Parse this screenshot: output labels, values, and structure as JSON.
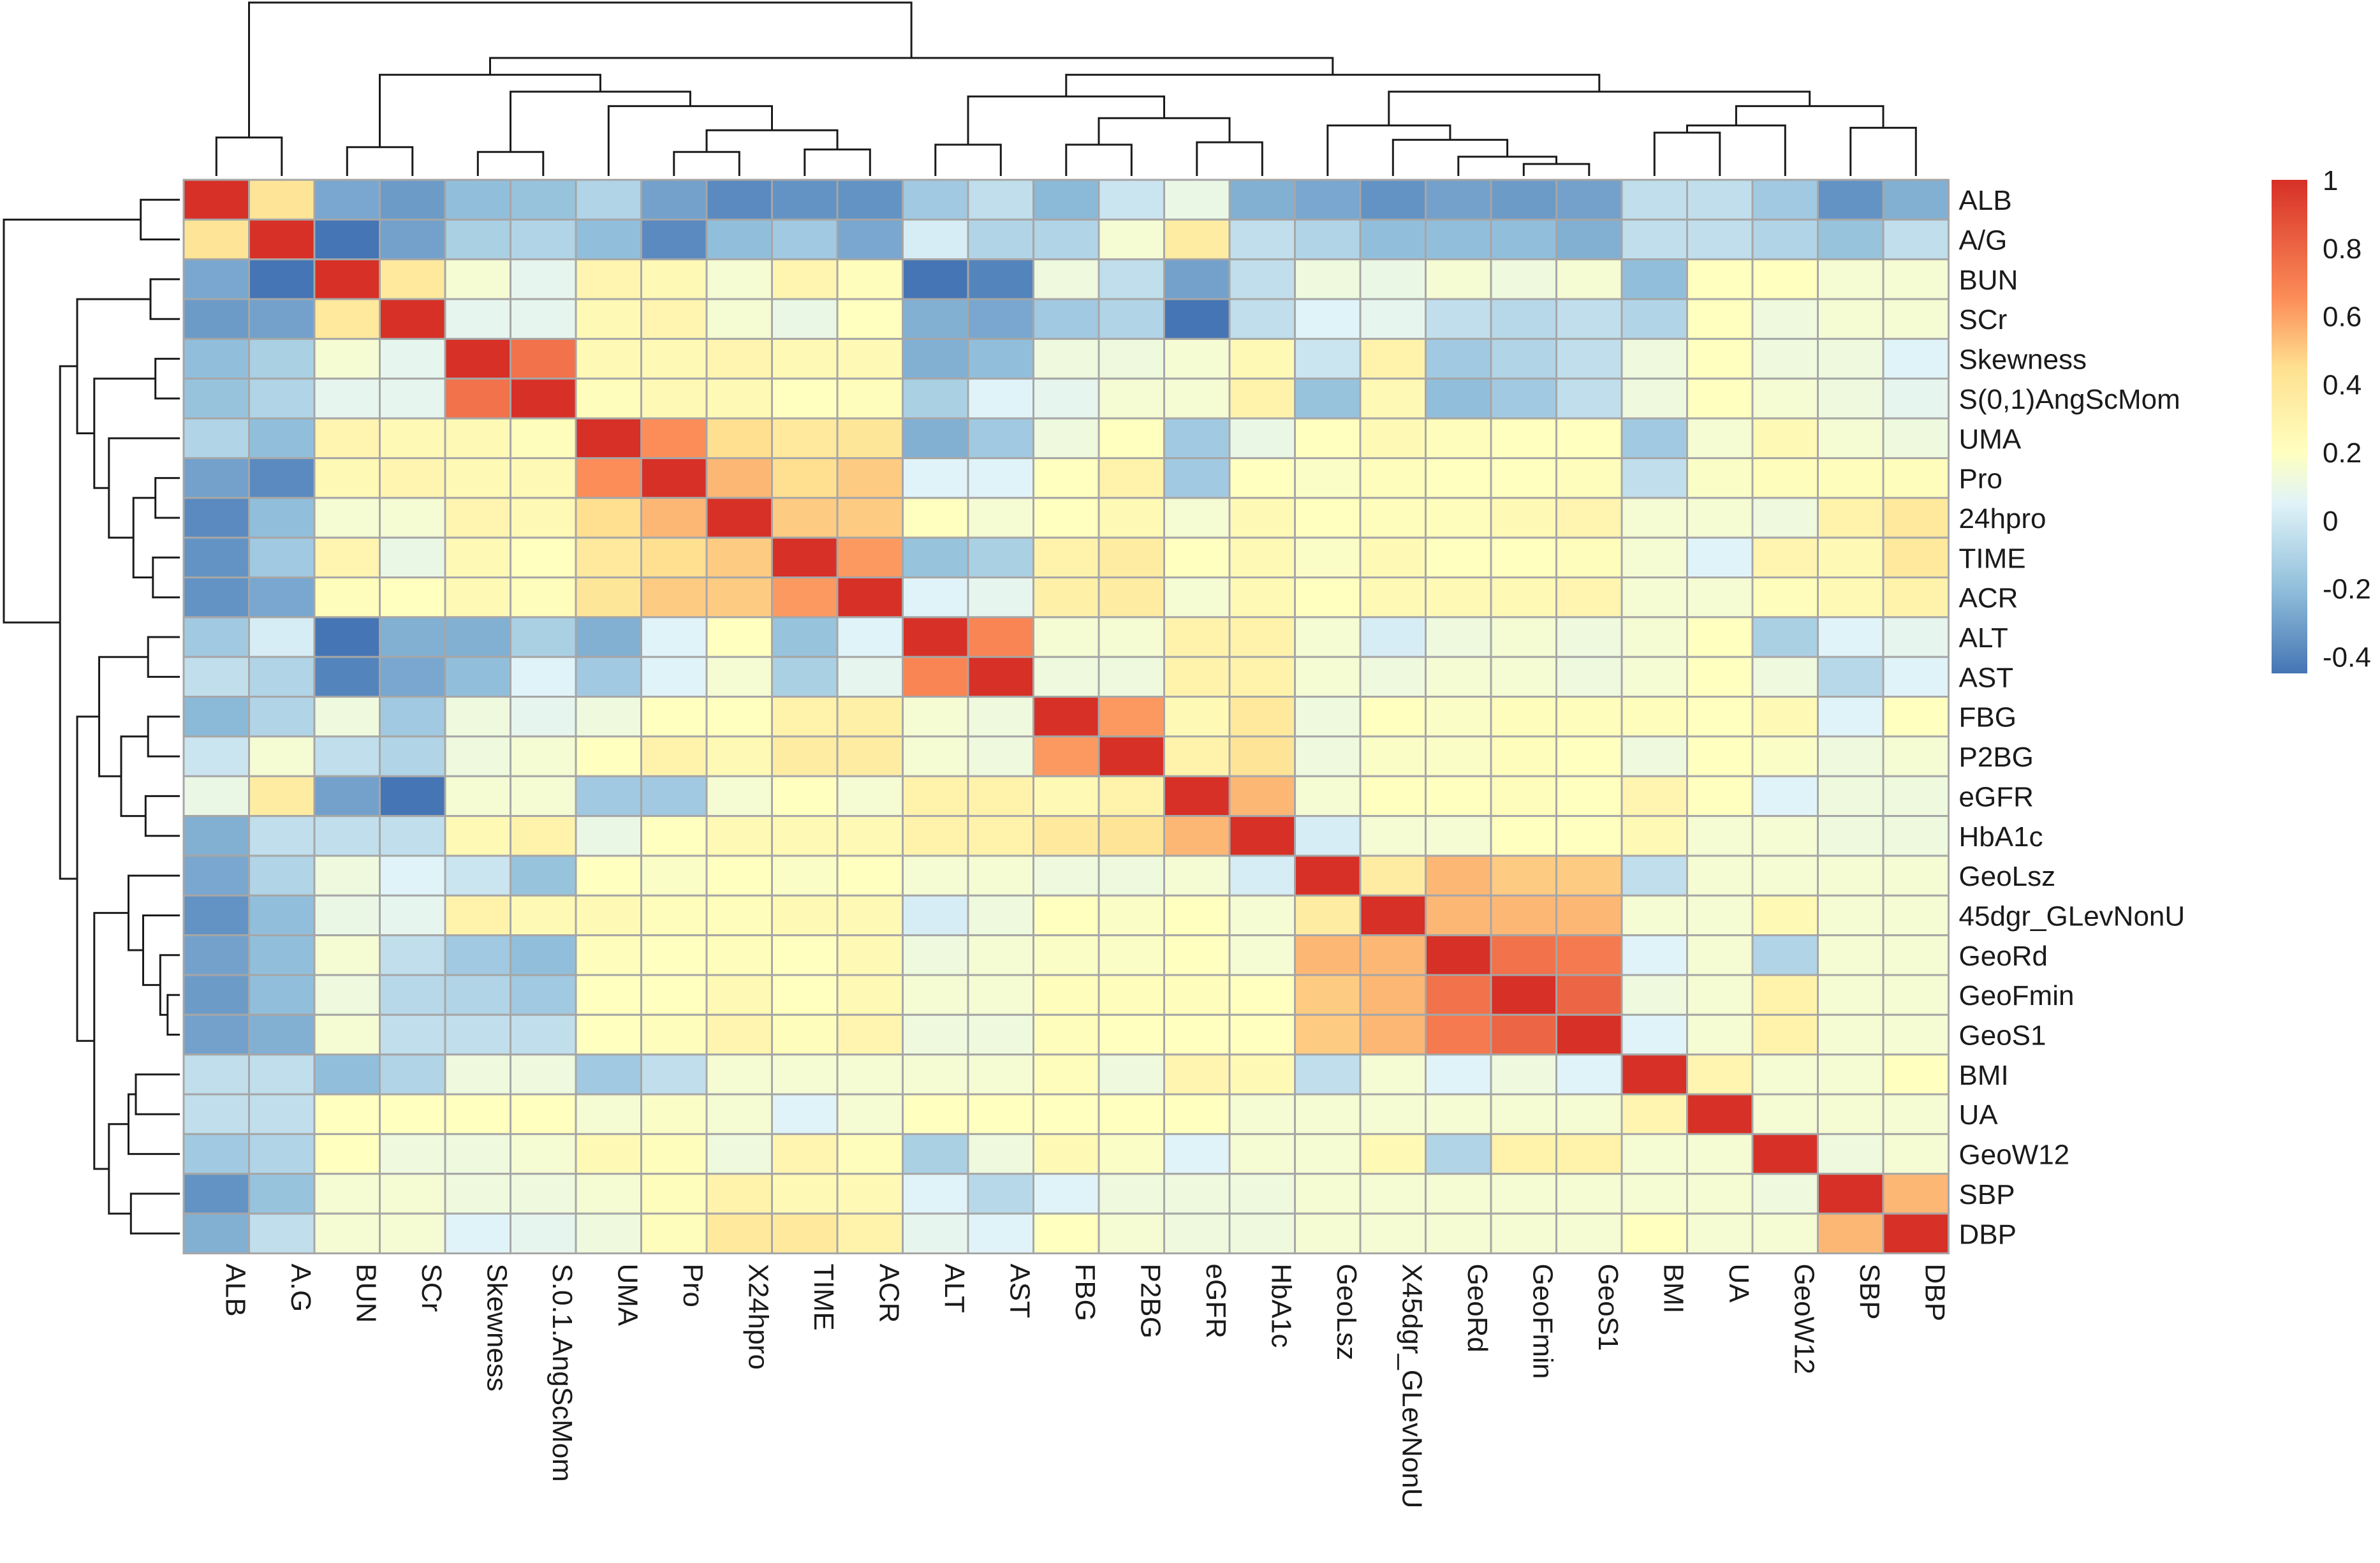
{
  "chart_data": {
    "type": "heatmap",
    "title": "",
    "row_labels": [
      "ALB",
      "A/G",
      "BUN",
      "SCr",
      "Skewness",
      "S(0,1)AngScMom",
      "UMA",
      "Pro",
      "24hpro",
      "TIME",
      "ACR",
      "ALT",
      "AST",
      "FBG",
      "P2BG",
      "eGFR",
      "HbA1c",
      "GeoLsz",
      "45dgr_GLevNonU",
      "GeoRd",
      "GeoFmin",
      "GeoS1",
      "BMI",
      "UA",
      "GeoW12",
      "SBP",
      "DBP"
    ],
    "col_labels": [
      "ALB",
      "A.G",
      "BUN",
      "SCr",
      "Skewness",
      "S.0.1.AngScMom",
      "UMA",
      "Pro",
      "X24hpro",
      "TIME",
      "ACR",
      "ALT",
      "AST",
      "FBG",
      "P2BG",
      "eGFR",
      "HbA1c",
      "GeoLsz",
      "X45dgr_GLevNonU",
      "GeoRd",
      "GeoFmin",
      "GeoS1",
      "BMI",
      "UA",
      "GeoW12",
      "SBP",
      "DBP"
    ],
    "values": [
      [
        1,
        0.42,
        -0.28,
        -0.32,
        -0.2,
        -0.18,
        -0.1,
        -0.3,
        -0.38,
        -0.35,
        -0.35,
        -0.15,
        -0.05,
        -0.22,
        -0.02,
        0.1,
        -0.25,
        -0.28,
        -0.35,
        -0.3,
        -0.32,
        -0.3,
        -0.05,
        -0.05,
        -0.15,
        -0.35,
        -0.25
      ],
      [
        0.42,
        1,
        -0.45,
        -0.3,
        -0.12,
        -0.1,
        -0.2,
        -0.38,
        -0.2,
        -0.15,
        -0.28,
        0.02,
        -0.1,
        -0.1,
        0.15,
        0.35,
        -0.05,
        -0.1,
        -0.2,
        -0.2,
        -0.2,
        -0.25,
        -0.05,
        -0.05,
        -0.1,
        -0.18,
        -0.05
      ],
      [
        -0.28,
        -0.45,
        1,
        0.38,
        0.15,
        0.08,
        0.28,
        0.25,
        0.15,
        0.28,
        0.22,
        -0.45,
        -0.4,
        0.12,
        -0.05,
        -0.3,
        -0.05,
        0.12,
        0.1,
        0.15,
        0.12,
        0.15,
        -0.2,
        0.2,
        0.2,
        0.15,
        0.15
      ],
      [
        -0.32,
        -0.3,
        0.38,
        1,
        0.08,
        0.08,
        0.25,
        0.28,
        0.15,
        0.1,
        0.2,
        -0.25,
        -0.28,
        -0.15,
        -0.1,
        -0.45,
        -0.05,
        0.05,
        0.08,
        -0.05,
        -0.08,
        -0.05,
        -0.1,
        0.2,
        0.12,
        0.15,
        0.15
      ],
      [
        -0.2,
        -0.12,
        0.15,
        0.08,
        1,
        0.75,
        0.25,
        0.25,
        0.28,
        0.25,
        0.25,
        -0.25,
        -0.2,
        0.12,
        0.12,
        0.15,
        0.25,
        -0.02,
        0.3,
        -0.15,
        -0.1,
        -0.05,
        0.12,
        0.2,
        0.12,
        0.12,
        0.05
      ],
      [
        -0.18,
        -0.1,
        0.08,
        0.08,
        0.75,
        1,
        0.22,
        0.25,
        0.25,
        0.2,
        0.22,
        -0.12,
        0.05,
        0.08,
        0.15,
        0.15,
        0.3,
        -0.18,
        0.25,
        -0.2,
        -0.15,
        -0.05,
        0.12,
        0.2,
        0.15,
        0.12,
        0.08
      ],
      [
        -0.1,
        -0.2,
        0.28,
        0.25,
        0.25,
        0.22,
        1,
        0.65,
        0.45,
        0.38,
        0.4,
        -0.25,
        -0.15,
        0.12,
        0.2,
        -0.15,
        0.1,
        0.2,
        0.25,
        0.22,
        0.2,
        0.2,
        -0.15,
        0.15,
        0.25,
        0.15,
        0.12
      ],
      [
        -0.3,
        -0.38,
        0.25,
        0.28,
        0.25,
        0.25,
        0.65,
        1,
        0.55,
        0.45,
        0.5,
        0.05,
        0.05,
        0.2,
        0.3,
        -0.15,
        0.2,
        0.18,
        0.22,
        0.2,
        0.2,
        0.22,
        -0.05,
        0.18,
        0.22,
        0.22,
        0.22
      ],
      [
        -0.38,
        -0.2,
        0.15,
        0.15,
        0.28,
        0.25,
        0.45,
        0.55,
        1,
        0.5,
        0.5,
        0.2,
        0.15,
        0.2,
        0.25,
        0.15,
        0.25,
        0.2,
        0.22,
        0.22,
        0.25,
        0.28,
        0.15,
        0.15,
        0.12,
        0.3,
        0.38
      ],
      [
        -0.35,
        -0.15,
        0.28,
        0.1,
        0.25,
        0.2,
        0.38,
        0.45,
        0.5,
        1,
        0.62,
        -0.18,
        -0.12,
        0.3,
        0.35,
        0.2,
        0.25,
        0.18,
        0.25,
        0.2,
        0.2,
        0.22,
        0.15,
        0.05,
        0.28,
        0.25,
        0.38
      ],
      [
        -0.35,
        -0.28,
        0.22,
        0.2,
        0.25,
        0.22,
        0.4,
        0.5,
        0.5,
        0.62,
        1,
        0.05,
        0.08,
        0.32,
        0.35,
        0.15,
        0.25,
        0.2,
        0.25,
        0.25,
        0.25,
        0.28,
        0.15,
        0.15,
        0.22,
        0.25,
        0.3
      ],
      [
        -0.15,
        0.02,
        -0.45,
        -0.25,
        -0.25,
        -0.12,
        -0.25,
        0.05,
        0.2,
        -0.18,
        0.05,
        1,
        0.68,
        0.15,
        0.15,
        0.3,
        0.3,
        0.15,
        0.02,
        0.12,
        0.15,
        0.12,
        0.15,
        0.2,
        -0.12,
        0.05,
        0.08
      ],
      [
        -0.05,
        -0.1,
        -0.4,
        -0.28,
        -0.2,
        0.05,
        -0.15,
        0.05,
        0.15,
        -0.12,
        0.08,
        0.68,
        1,
        0.12,
        0.12,
        0.3,
        0.3,
        0.15,
        0.12,
        0.15,
        0.15,
        0.12,
        0.15,
        0.2,
        0.12,
        -0.08,
        0.05
      ],
      [
        -0.22,
        -0.1,
        0.12,
        -0.15,
        0.12,
        0.08,
        0.12,
        0.2,
        0.2,
        0.3,
        0.32,
        0.15,
        0.12,
        1,
        0.62,
        0.25,
        0.38,
        0.12,
        0.2,
        0.18,
        0.22,
        0.22,
        0.22,
        0.2,
        0.25,
        0.05,
        0.2
      ],
      [
        -0.02,
        0.15,
        -0.05,
        -0.1,
        0.12,
        0.15,
        0.2,
        0.3,
        0.25,
        0.35,
        0.35,
        0.15,
        0.12,
        0.62,
        1,
        0.3,
        0.42,
        0.12,
        0.18,
        0.18,
        0.22,
        0.2,
        0.12,
        0.2,
        0.18,
        0.12,
        0.15
      ],
      [
        0.1,
        0.35,
        -0.3,
        -0.45,
        0.15,
        0.15,
        -0.15,
        -0.15,
        0.15,
        0.2,
        0.15,
        0.3,
        0.3,
        0.25,
        0.3,
        1,
        0.55,
        0.15,
        0.2,
        0.2,
        0.22,
        0.2,
        0.28,
        0.2,
        0.05,
        0.12,
        0.12
      ],
      [
        -0.25,
        -0.05,
        -0.05,
        -0.05,
        0.25,
        0.3,
        0.1,
        0.2,
        0.25,
        0.25,
        0.25,
        0.3,
        0.3,
        0.38,
        0.42,
        0.55,
        1,
        0.02,
        0.15,
        0.15,
        0.2,
        0.2,
        0.25,
        0.15,
        0.15,
        0.12,
        0.12
      ],
      [
        -0.28,
        -0.1,
        0.12,
        0.05,
        -0.02,
        -0.18,
        0.2,
        0.18,
        0.2,
        0.18,
        0.2,
        0.15,
        0.15,
        0.12,
        0.12,
        0.15,
        0.02,
        1,
        0.35,
        0.55,
        0.5,
        0.5,
        -0.05,
        0.15,
        0.15,
        0.15,
        0.15
      ],
      [
        -0.35,
        -0.2,
        0.1,
        0.08,
        0.3,
        0.25,
        0.25,
        0.22,
        0.22,
        0.25,
        0.25,
        0.02,
        0.12,
        0.2,
        0.18,
        0.2,
        0.15,
        0.35,
        1,
        0.55,
        0.55,
        0.55,
        0.15,
        0.15,
        0.25,
        0.15,
        0.15
      ],
      [
        -0.3,
        -0.2,
        0.15,
        -0.05,
        -0.15,
        -0.2,
        0.22,
        0.2,
        0.22,
        0.2,
        0.25,
        0.12,
        0.15,
        0.18,
        0.18,
        0.2,
        0.15,
        0.55,
        0.55,
        1,
        0.75,
        0.72,
        0.05,
        0.15,
        -0.1,
        0.15,
        0.15
      ],
      [
        -0.32,
        -0.2,
        0.12,
        -0.08,
        -0.1,
        -0.15,
        0.2,
        0.2,
        0.25,
        0.2,
        0.25,
        0.15,
        0.15,
        0.22,
        0.22,
        0.22,
        0.2,
        0.5,
        0.55,
        0.75,
        1,
        0.8,
        0.12,
        0.15,
        0.3,
        0.15,
        0.15
      ],
      [
        -0.3,
        -0.25,
        0.15,
        -0.05,
        -0.05,
        -0.05,
        0.2,
        0.22,
        0.28,
        0.22,
        0.28,
        0.12,
        0.12,
        0.22,
        0.2,
        0.2,
        0.2,
        0.5,
        0.55,
        0.72,
        0.8,
        1,
        0.05,
        0.15,
        0.3,
        0.15,
        0.15
      ],
      [
        -0.05,
        -0.05,
        -0.2,
        -0.1,
        0.12,
        0.12,
        -0.15,
        -0.05,
        0.15,
        0.15,
        0.15,
        0.15,
        0.15,
        0.22,
        0.12,
        0.28,
        0.25,
        -0.05,
        0.15,
        0.05,
        0.12,
        0.05,
        1,
        0.28,
        0.15,
        0.15,
        0.2
      ],
      [
        -0.05,
        -0.05,
        0.2,
        0.2,
        0.2,
        0.2,
        0.15,
        0.18,
        0.15,
        0.05,
        0.15,
        0.2,
        0.2,
        0.2,
        0.2,
        0.2,
        0.15,
        0.15,
        0.15,
        0.15,
        0.15,
        0.15,
        0.28,
        1,
        0.15,
        0.15,
        0.15
      ],
      [
        -0.15,
        -0.1,
        0.2,
        0.12,
        0.12,
        0.15,
        0.25,
        0.22,
        0.12,
        0.28,
        0.22,
        -0.12,
        0.12,
        0.25,
        0.18,
        0.05,
        0.15,
        0.15,
        0.25,
        -0.1,
        0.3,
        0.3,
        0.15,
        0.15,
        1,
        0.12,
        0.15
      ],
      [
        -0.35,
        -0.18,
        0.15,
        0.15,
        0.12,
        0.12,
        0.15,
        0.22,
        0.3,
        0.25,
        0.25,
        0.05,
        -0.08,
        0.05,
        0.12,
        0.12,
        0.12,
        0.15,
        0.15,
        0.15,
        0.15,
        0.15,
        0.15,
        0.15,
        0.12,
        1,
        0.55
      ],
      [
        -0.25,
        -0.05,
        0.15,
        0.15,
        0.05,
        0.08,
        0.12,
        0.22,
        0.38,
        0.38,
        0.3,
        0.08,
        0.05,
        0.2,
        0.15,
        0.12,
        0.12,
        0.15,
        0.15,
        0.15,
        0.15,
        0.15,
        0.2,
        0.15,
        0.15,
        0.55,
        1
      ]
    ],
    "color_scale": {
      "min": -0.45,
      "max": 1,
      "stops": [
        {
          "value": -0.45,
          "color": "#4575b4"
        },
        {
          "value": -0.2,
          "color": "#91bfdb"
        },
        {
          "value": 0.05,
          "color": "#e0f3f8"
        },
        {
          "value": 0.2,
          "color": "#ffffbf"
        },
        {
          "value": 0.45,
          "color": "#fee090"
        },
        {
          "value": 0.65,
          "color": "#fc8d59"
        },
        {
          "value": 1,
          "color": "#d73027"
        }
      ]
    },
    "legend": {
      "placement": "top-right",
      "ticks": [
        1,
        0.8,
        0.6,
        0.4,
        0.2,
        0,
        -0.2,
        -0.4
      ]
    },
    "dendrogram_order": "rows and columns clustered identically (hierarchical clustering)",
    "grid_color": "#a6a6a6"
  }
}
